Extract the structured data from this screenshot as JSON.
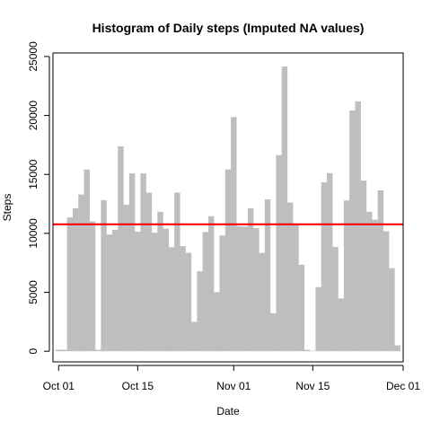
{
  "chart_data": {
    "type": "bar",
    "title": "Histogram of Daily steps (Imputed NA values)",
    "xlabel": "Date",
    "ylabel": "Steps",
    "x_tick_labels": [
      "Oct 01",
      "Oct 15",
      "Nov 01",
      "Nov 15",
      "Dec 01"
    ],
    "x_ticks": [
      "2012-10-01",
      "2012-10-15",
      "2012-11-01",
      "2012-11-15",
      "2012-12-01"
    ],
    "y_ticks": [
      0,
      5000,
      10000,
      15000,
      20000,
      25000
    ],
    "y_tick_labels": [
      "0",
      "5000",
      "10000",
      "15000",
      "20000",
      "25000"
    ],
    "ylim": [
      -900,
      25300
    ],
    "xlim": [
      "2012-09-30",
      "2012-12-01"
    ],
    "bar_color": "#bebebe",
    "reference_line": {
      "y": 10766,
      "color": "#ff0000"
    },
    "x": [
      "2012-10-01",
      "2012-10-02",
      "2012-10-03",
      "2012-10-04",
      "2012-10-05",
      "2012-10-06",
      "2012-10-07",
      "2012-10-08",
      "2012-10-09",
      "2012-10-10",
      "2012-10-11",
      "2012-10-12",
      "2012-10-13",
      "2012-10-14",
      "2012-10-15",
      "2012-10-16",
      "2012-10-17",
      "2012-10-18",
      "2012-10-19",
      "2012-10-20",
      "2012-10-21",
      "2012-10-22",
      "2012-10-23",
      "2012-10-24",
      "2012-10-25",
      "2012-10-26",
      "2012-10-27",
      "2012-10-28",
      "2012-10-29",
      "2012-10-30",
      "2012-10-31",
      "2012-11-01",
      "2012-11-02",
      "2012-11-03",
      "2012-11-04",
      "2012-11-05",
      "2012-11-06",
      "2012-11-07",
      "2012-11-08",
      "2012-11-09",
      "2012-11-10",
      "2012-11-11",
      "2012-11-12",
      "2012-11-13",
      "2012-11-14",
      "2012-11-15",
      "2012-11-16",
      "2012-11-17",
      "2012-11-18",
      "2012-11-19",
      "2012-11-20",
      "2012-11-21",
      "2012-11-22",
      "2012-11-23",
      "2012-11-24",
      "2012-11-25",
      "2012-11-26",
      "2012-11-27",
      "2012-11-28",
      "2012-11-29",
      "2012-11-30"
    ],
    "values": [
      126,
      126,
      11352,
      12116,
      13294,
      15420,
      11015,
      126,
      12811,
      9900,
      10304,
      17382,
      12426,
      15098,
      10139,
      15084,
      13452,
      10056,
      11829,
      10395,
      8821,
      13460,
      8918,
      8355,
      2492,
      6778,
      10119,
      11458,
      5018,
      9819,
      15414,
      19868,
      10600,
      10571,
      12116,
      10439,
      8334,
      12883,
      3219,
      16634,
      24150,
      12608,
      10765,
      7336,
      126,
      41,
      5441,
      14339,
      15110,
      8841,
      4472,
      12787,
      20427,
      21194,
      14478,
      11834,
      11162,
      13646,
      10183,
      7047,
      500
    ]
  }
}
